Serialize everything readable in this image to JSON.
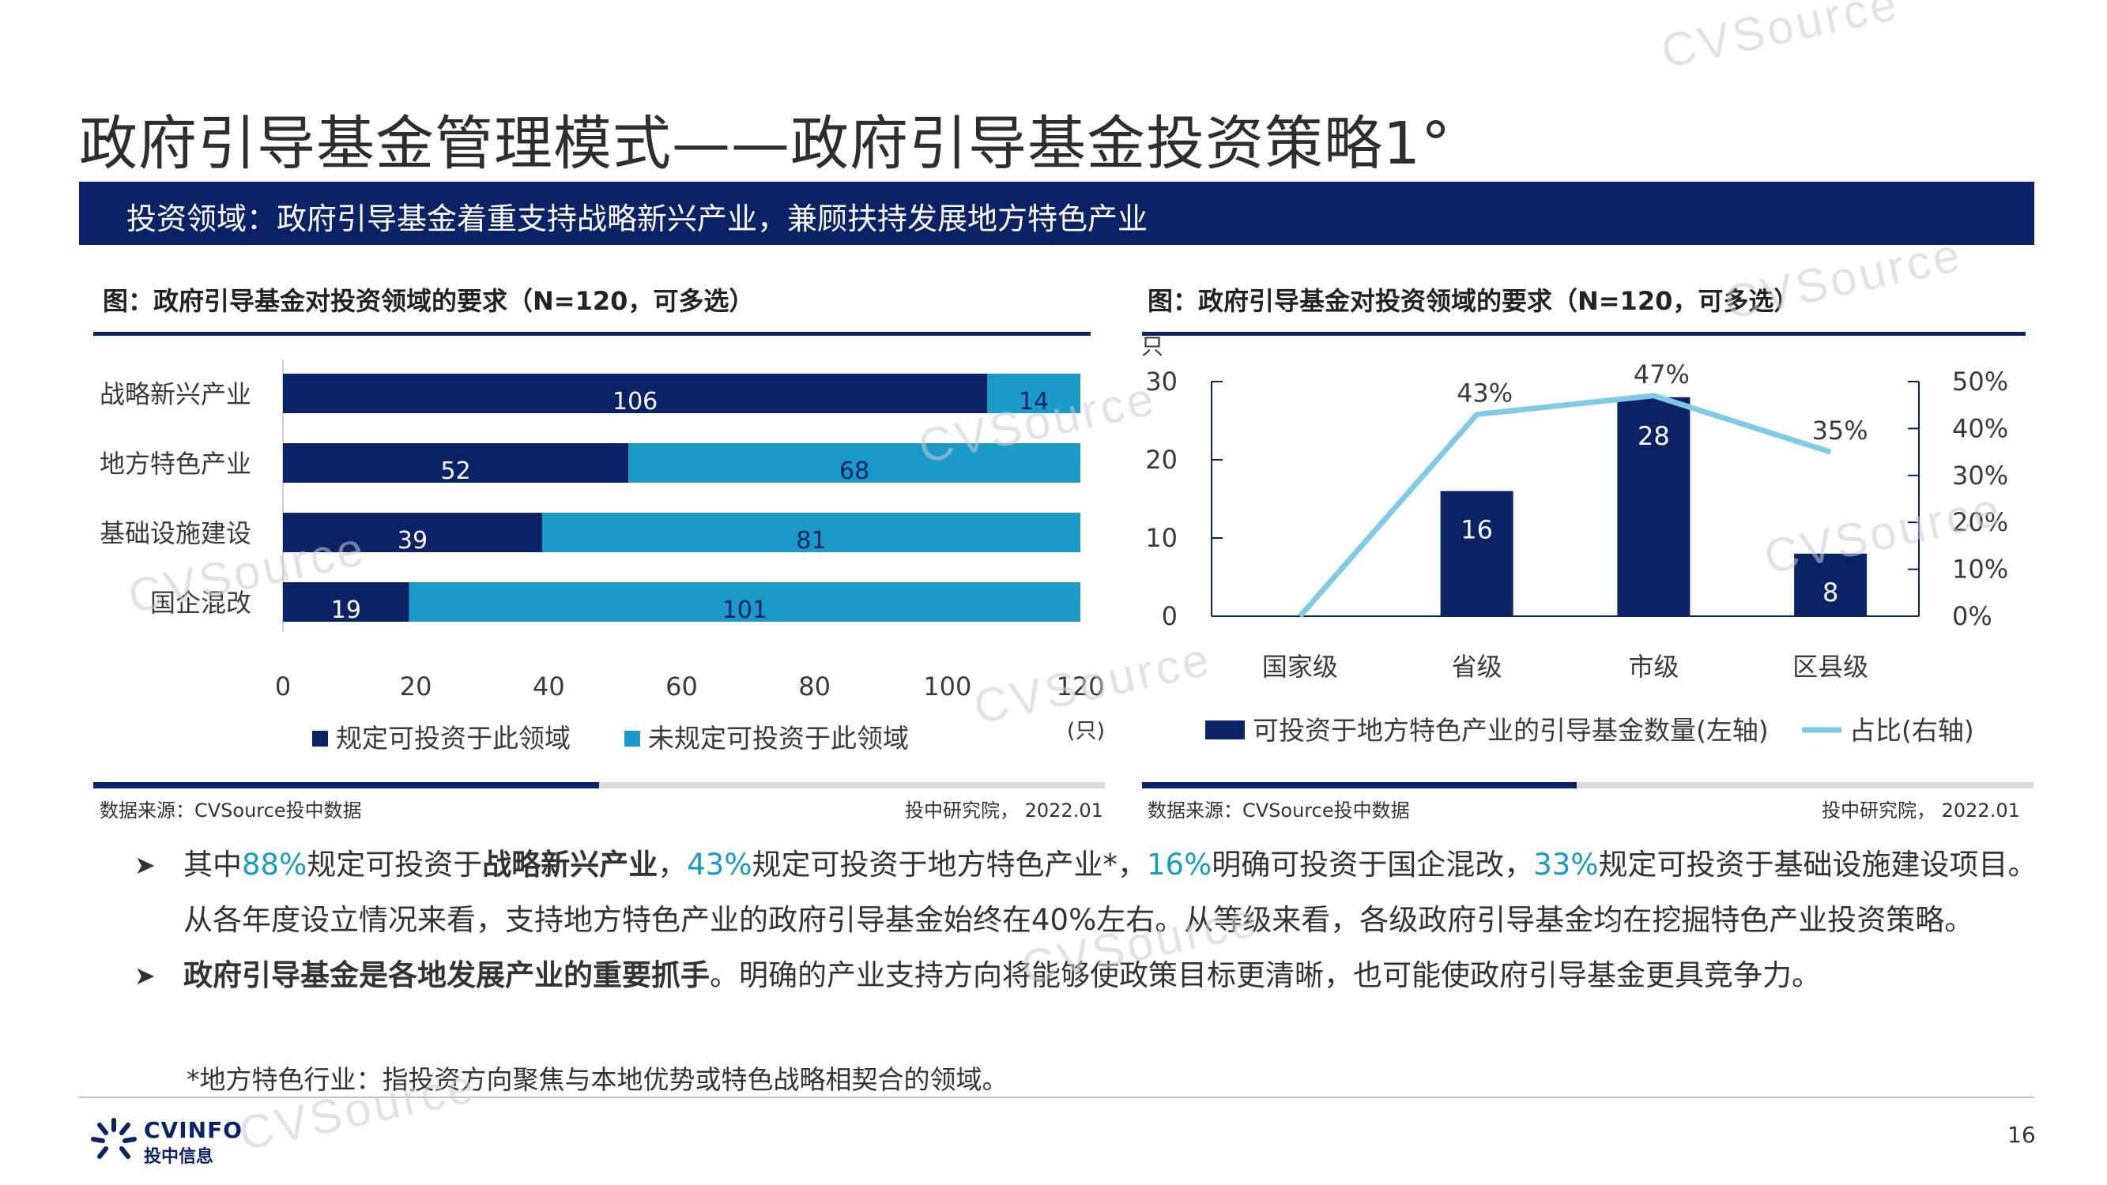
{
  "page": {
    "title": "政府引导基金管理模式——政府引导基金投资策略1°",
    "banner": "投资领域：政府引导基金着重支持战略新兴产业，兼顾扶持发展地方特色产业",
    "page_number": "16",
    "logo": {
      "line1": "CVINFO",
      "line2": "投中信息"
    },
    "watermark": "CVSource",
    "colors": {
      "navy": "#0b2366",
      "cyan": "#1a9ac9",
      "light_line": "#7fcbe6"
    }
  },
  "left_panel": {
    "title": "图：政府引导基金对投资领域的要求（N=120，可多选）",
    "source": "数据来源：CVSource投中数据",
    "credit": "投中研究院，  2022.01"
  },
  "right_panel": {
    "title": "图：政府引导基金对投资领域的要求（N=120，可多选）",
    "source": "数据来源：CVSource投中数据",
    "credit": "投中研究院，  2022.01"
  },
  "chart_data": [
    {
      "type": "bar",
      "orientation": "horizontal",
      "stacked": true,
      "categories": [
        "战略新兴产业",
        "地方特色产业",
        "基础设施建设",
        "国企混改"
      ],
      "series": [
        {
          "name": "规定可投资于此领域",
          "values": [
            106,
            52,
            39,
            19
          ],
          "color": "#0b2366"
        },
        {
          "name": "未规定可投资于此领域",
          "values": [
            14,
            68,
            81,
            101
          ],
          "color": "#1a9ac9"
        }
      ],
      "xlim": [
        0,
        120
      ],
      "xticks": [
        "0",
        "20",
        "40",
        "60",
        "80",
        "100",
        "120"
      ],
      "xunit": "(只)",
      "legend": "bottom"
    },
    {
      "type": "bar",
      "categories": [
        "国家级",
        "省级",
        "市级",
        "区县级"
      ],
      "series": [
        {
          "name": "可投资于地方特色产业的引导基金数量(左轴)",
          "values": [
            0,
            16,
            28,
            8
          ],
          "color": "#0b2366",
          "axis": "left"
        },
        {
          "name": "占比(右轴)",
          "type": "line",
          "values": [
            0,
            43,
            47,
            35
          ],
          "labels": [
            "",
            "43%",
            "47%",
            "35%"
          ],
          "color": "#7fcbe6",
          "axis": "right"
        }
      ],
      "ylim_left": [
        0,
        30
      ],
      "yticks_left": [
        "0",
        "10",
        "20",
        "30"
      ],
      "yunit_left": "只",
      "ylim_right": [
        0,
        50
      ],
      "yticks_right": [
        "0%",
        "10%",
        "20%",
        "30%",
        "40%",
        "50%"
      ],
      "legend": "bottom"
    }
  ],
  "bullets": [
    {
      "parts": [
        {
          "t": "其中",
          "s": ""
        },
        {
          "t": "88%",
          "s": "hl"
        },
        {
          "t": "规定可投资于",
          "s": ""
        },
        {
          "t": "战略新兴产业",
          "s": "b"
        },
        {
          "t": "，",
          "s": ""
        },
        {
          "t": "43%",
          "s": "hl"
        },
        {
          "t": "规定可投资于地方特色产业*，",
          "s": ""
        },
        {
          "t": "16%",
          "s": "hl"
        },
        {
          "t": "明确可投资于国企混改，",
          "s": ""
        },
        {
          "t": "33%",
          "s": "hl"
        },
        {
          "t": "规定可投资于基础设施建设项目。从各年度设立情况来看，支持地方特色产业的政府引导基金始终在40%左右。从等级来看，各级政府引导基金均在挖掘特色产业投资策略。",
          "s": ""
        }
      ]
    },
    {
      "parts": [
        {
          "t": "政府引导基金是各地发展产业的重要抓手",
          "s": "b"
        },
        {
          "t": "。明确的产业支持方向将能够使政策目标更清晰，也可能使政府引导基金更具竞争力。",
          "s": ""
        }
      ]
    }
  ],
  "footnote": "*地方特色行业：指投资方向聚焦与本地优势或特色战略相契合的领域。"
}
